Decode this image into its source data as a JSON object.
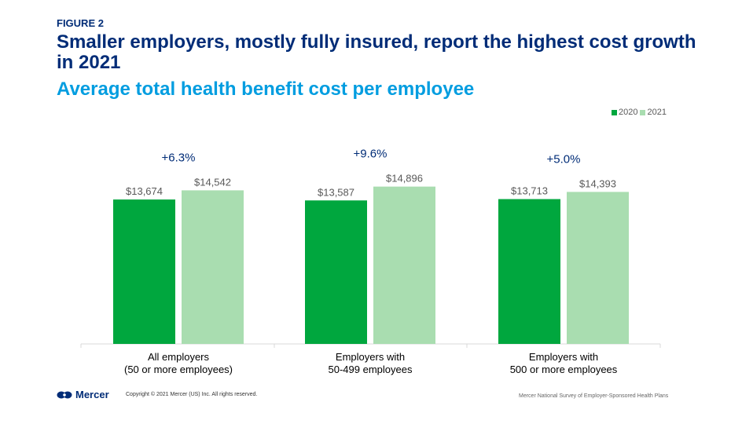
{
  "header": {
    "figure_label": "FIGURE 2",
    "title": "Smaller employers, mostly fully insured, report the highest cost growth in 2021",
    "subtitle": "Average total health benefit cost per employee"
  },
  "footer": {
    "brand": "Mercer",
    "copyright": "Copyright © 2021 Mercer (US) Inc. All rights reserved.",
    "source": "Mercer National Survey of Employer-Sponsored Health Plans"
  },
  "colors": {
    "series_2020": "#00a73e",
    "series_2021": "#a9ddb0",
    "title": "#002c77",
    "subtitle": "#009de0",
    "growth_label": "#002c77"
  },
  "chart_data": {
    "type": "bar",
    "categories": [
      [
        "All employers",
        "(50 or more employees)"
      ],
      [
        "Employers with",
        "50-499 employees"
      ],
      [
        "Employers with",
        "500 or more employees"
      ]
    ],
    "series": [
      {
        "name": "2020",
        "values": [
          13674,
          13587,
          13713
        ],
        "labels": [
          "$13,674",
          "$13,587",
          "$13,713"
        ]
      },
      {
        "name": "2021",
        "values": [
          14542,
          14896,
          14393
        ],
        "labels": [
          "$14,542",
          "$14,896",
          "$14,393"
        ]
      }
    ],
    "growth_labels": [
      "+6.3%",
      "+9.6%",
      "+5.0%"
    ],
    "legend_position": "top-right",
    "grid": false
  }
}
